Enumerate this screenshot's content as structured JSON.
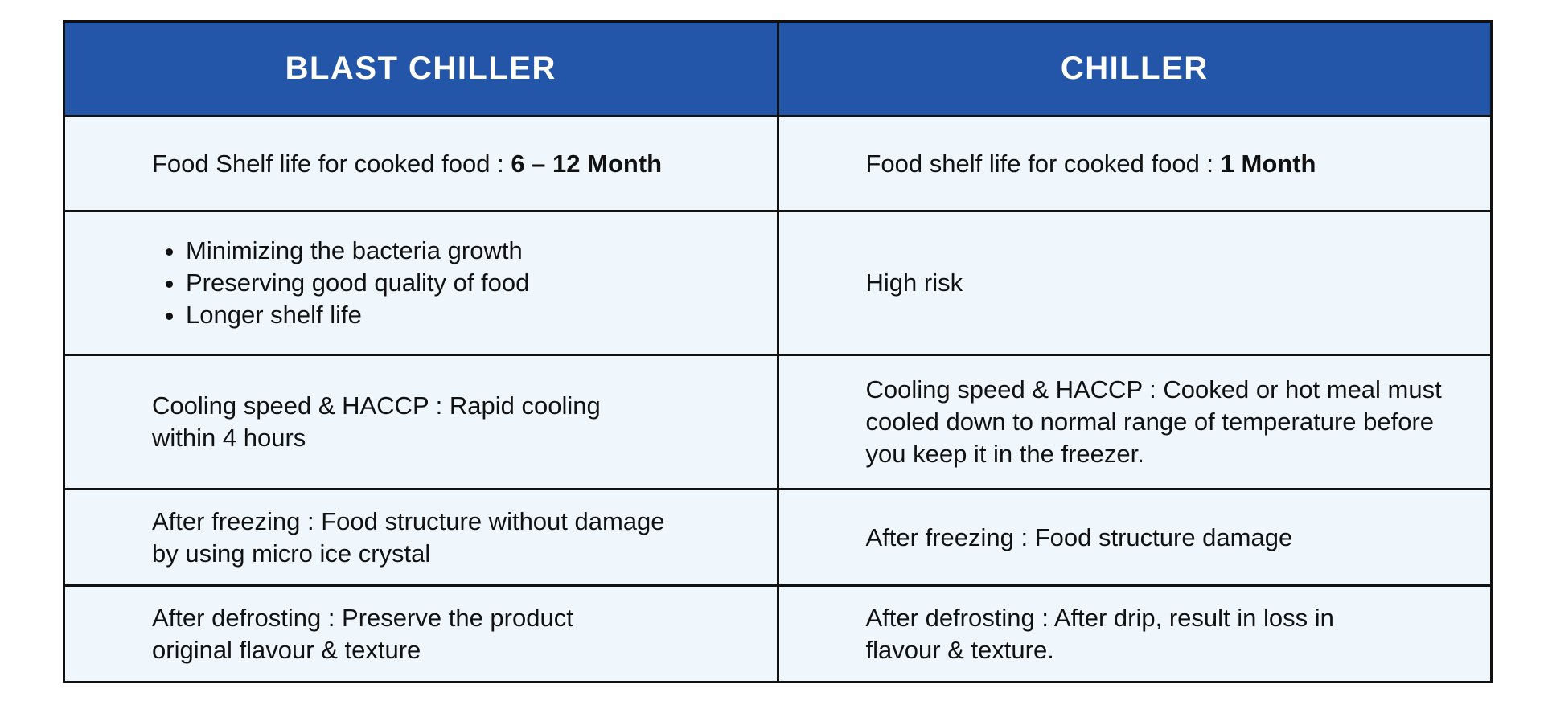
{
  "table": {
    "headers": {
      "left": "BLAST CHILLER",
      "right": "CHILLER"
    },
    "rows": [
      {
        "left": {
          "prefix": "Food Shelf life for cooked food : ",
          "value": "6 – 12 Month"
        },
        "right": {
          "prefix": "Food shelf life for cooked food : ",
          "value": "1 Month"
        }
      },
      {
        "left": {
          "bullets": [
            "Minimizing the bacteria growth",
            "Preserving good quality of food",
            "Longer shelf life"
          ]
        },
        "right": {
          "text": "High risk"
        }
      },
      {
        "left": {
          "lines": [
            "Cooling speed & HACCP : Rapid cooling",
            "within 4 hours"
          ]
        },
        "right": {
          "lines": [
            "Cooling speed & HACCP : Cooked or hot meal must",
            "cooled down to normal range of temperature before",
            "you keep it in the freezer."
          ]
        }
      },
      {
        "left": {
          "lines": [
            "After freezing : Food structure without damage",
            "by using micro ice crystal"
          ]
        },
        "right": {
          "text": "After freezing : Food structure damage"
        }
      },
      {
        "left": {
          "lines": [
            "After defrosting : Preserve the product",
            "original flavour & texture"
          ]
        },
        "right": {
          "lines": [
            "After defrosting : After drip, result in loss in",
            "flavour & texture."
          ]
        }
      }
    ]
  },
  "colors": {
    "header_bg": "#2355a8",
    "header_text": "#ffffff",
    "cell_bg": "#eff7fc",
    "border": "#111111"
  }
}
